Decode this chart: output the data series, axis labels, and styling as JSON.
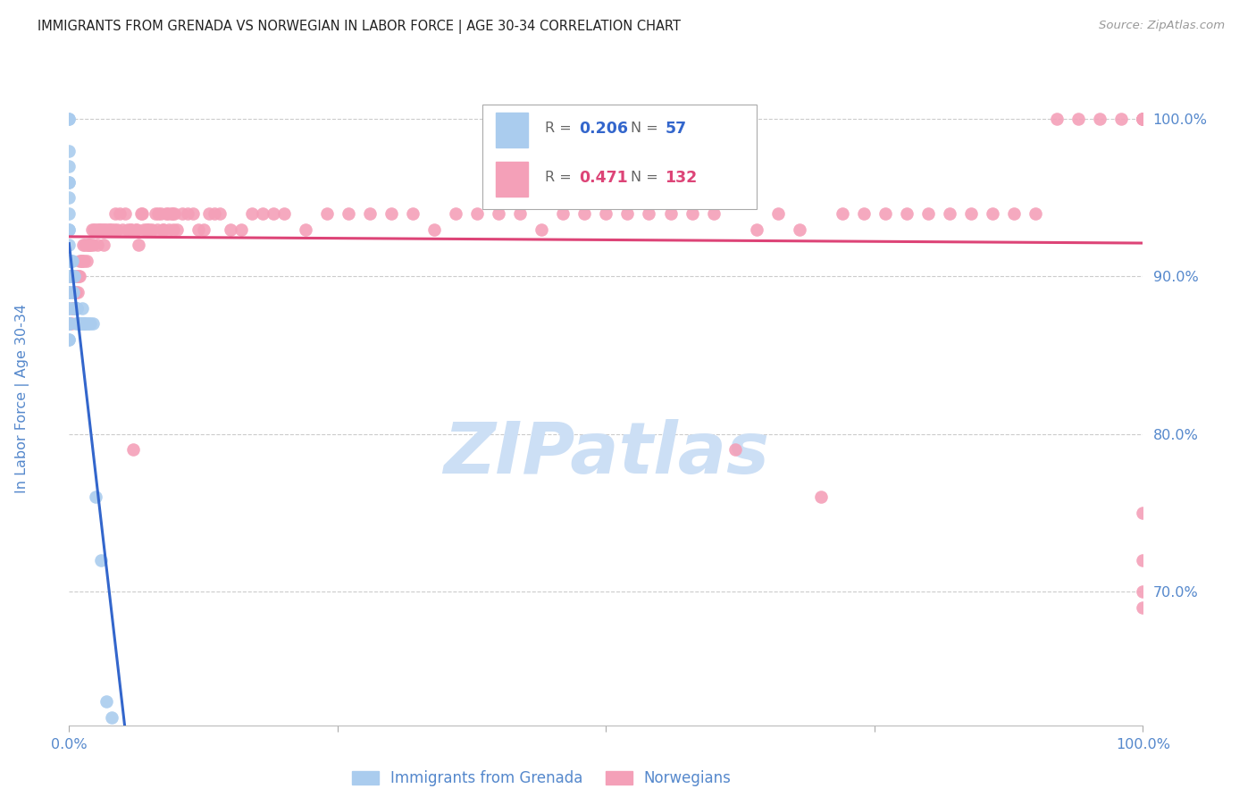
{
  "title": "IMMIGRANTS FROM GRENADA VS NORWEGIAN IN LABOR FORCE | AGE 30-34 CORRELATION CHART",
  "source_text": "Source: ZipAtlas.com",
  "ylabel": "In Labor Force | Age 30-34",
  "xlim": [
    0.0,
    1.0
  ],
  "ylim": [
    0.615,
    1.025
  ],
  "yticks": [
    0.7,
    0.8,
    0.9,
    1.0
  ],
  "ytick_labels": [
    "70.0%",
    "80.0%",
    "90.0%",
    "100.0%"
  ],
  "title_color": "#222222",
  "source_color": "#999999",
  "axis_label_color": "#5588cc",
  "tick_label_color": "#5588cc",
  "grid_color": "#cccccc",
  "watermark_color": "#ccdff5",
  "legend_r_grenada": "0.206",
  "legend_n_grenada": "57",
  "legend_r_norwegian": "0.471",
  "legend_n_norwegian": "132",
  "grenada_color": "#aaccee",
  "norwegian_color": "#f4a0b8",
  "grenada_line_color": "#3366cc",
  "norwegian_line_color": "#dd4477",
  "grenada_scatter_x": [
    0.0,
    0.0,
    0.0,
    0.0,
    0.0,
    0.0,
    0.0,
    0.0,
    0.0,
    0.0,
    0.0,
    0.0,
    0.0,
    0.0,
    0.0,
    0.0,
    0.0,
    0.0,
    0.0,
    0.0,
    0.0,
    0.0,
    0.0,
    0.0,
    0.0,
    0.0,
    0.002,
    0.002,
    0.003,
    0.003,
    0.003,
    0.004,
    0.004,
    0.004,
    0.005,
    0.005,
    0.006,
    0.006,
    0.007,
    0.007,
    0.008,
    0.009,
    0.01,
    0.01,
    0.011,
    0.012,
    0.013,
    0.014,
    0.015,
    0.016,
    0.018,
    0.02,
    0.022,
    0.025,
    0.03,
    0.035,
    0.04
  ],
  "grenada_scatter_y": [
    1.0,
    1.0,
    0.98,
    0.97,
    0.96,
    0.96,
    0.95,
    0.94,
    0.93,
    0.93,
    0.92,
    0.91,
    0.91,
    0.9,
    0.9,
    0.89,
    0.89,
    0.89,
    0.88,
    0.88,
    0.87,
    0.87,
    0.87,
    0.87,
    0.86,
    0.86,
    0.91,
    0.9,
    0.91,
    0.9,
    0.89,
    0.9,
    0.89,
    0.88,
    0.9,
    0.88,
    0.88,
    0.87,
    0.88,
    0.88,
    0.87,
    0.87,
    0.87,
    0.87,
    0.87,
    0.88,
    0.87,
    0.87,
    0.87,
    0.87,
    0.87,
    0.87,
    0.87,
    0.76,
    0.72,
    0.63,
    0.62
  ],
  "norwegian_scatter_x": [
    0.002,
    0.003,
    0.004,
    0.005,
    0.006,
    0.006,
    0.007,
    0.008,
    0.009,
    0.01,
    0.01,
    0.011,
    0.012,
    0.013,
    0.014,
    0.015,
    0.016,
    0.017,
    0.018,
    0.019,
    0.02,
    0.021,
    0.022,
    0.023,
    0.025,
    0.026,
    0.027,
    0.028,
    0.03,
    0.031,
    0.032,
    0.033,
    0.035,
    0.037,
    0.038,
    0.04,
    0.042,
    0.043,
    0.045,
    0.047,
    0.05,
    0.052,
    0.055,
    0.057,
    0.058,
    0.06,
    0.062,
    0.063,
    0.065,
    0.067,
    0.068,
    0.07,
    0.072,
    0.073,
    0.075,
    0.077,
    0.08,
    0.082,
    0.083,
    0.085,
    0.087,
    0.088,
    0.09,
    0.092,
    0.093,
    0.095,
    0.096,
    0.097,
    0.098,
    0.1,
    0.105,
    0.11,
    0.115,
    0.12,
    0.125,
    0.13,
    0.135,
    0.14,
    0.15,
    0.16,
    0.17,
    0.18,
    0.19,
    0.2,
    0.22,
    0.24,
    0.26,
    0.28,
    0.3,
    0.32,
    0.34,
    0.36,
    0.38,
    0.4,
    0.42,
    0.44,
    0.46,
    0.48,
    0.5,
    0.52,
    0.54,
    0.56,
    0.58,
    0.6,
    0.62,
    0.64,
    0.66,
    0.68,
    0.7,
    0.72,
    0.74,
    0.76,
    0.78,
    0.8,
    0.82,
    0.84,
    0.86,
    0.88,
    0.9,
    0.92,
    0.94,
    0.96,
    0.98,
    1.0,
    1.0,
    1.0,
    1.0,
    1.0,
    1.0,
    1.0,
    1.0,
    1.0
  ],
  "norwegian_scatter_y": [
    0.87,
    0.88,
    0.88,
    0.89,
    0.9,
    0.89,
    0.9,
    0.89,
    0.9,
    0.9,
    0.91,
    0.91,
    0.91,
    0.92,
    0.91,
    0.92,
    0.91,
    0.92,
    0.92,
    0.92,
    0.92,
    0.93,
    0.92,
    0.93,
    0.93,
    0.92,
    0.93,
    0.93,
    0.93,
    0.93,
    0.92,
    0.93,
    0.93,
    0.93,
    0.93,
    0.93,
    0.93,
    0.94,
    0.93,
    0.94,
    0.93,
    0.94,
    0.93,
    0.93,
    0.93,
    0.79,
    0.93,
    0.93,
    0.92,
    0.94,
    0.94,
    0.93,
    0.93,
    0.93,
    0.93,
    0.93,
    0.94,
    0.93,
    0.94,
    0.94,
    0.93,
    0.93,
    0.94,
    0.94,
    0.93,
    0.94,
    0.94,
    0.93,
    0.94,
    0.93,
    0.94,
    0.94,
    0.94,
    0.93,
    0.93,
    0.94,
    0.94,
    0.94,
    0.93,
    0.93,
    0.94,
    0.94,
    0.94,
    0.94,
    0.93,
    0.94,
    0.94,
    0.94,
    0.94,
    0.94,
    0.93,
    0.94,
    0.94,
    0.94,
    0.94,
    0.93,
    0.94,
    0.94,
    0.94,
    0.94,
    0.94,
    0.94,
    0.94,
    0.94,
    0.79,
    0.93,
    0.94,
    0.93,
    0.76,
    0.94,
    0.94,
    0.94,
    0.94,
    0.94,
    0.94,
    0.94,
    0.94,
    0.94,
    0.94,
    1.0,
    1.0,
    1.0,
    1.0,
    1.0,
    0.72,
    0.75,
    0.7,
    0.69,
    1.0,
    1.0,
    1.0,
    1.0
  ]
}
